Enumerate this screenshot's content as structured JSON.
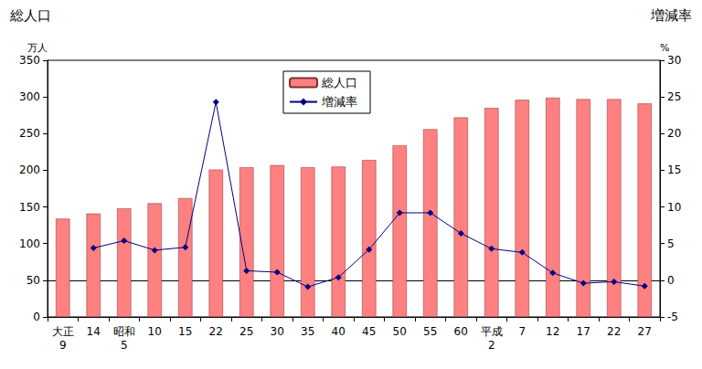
{
  "chart_data": {
    "type": "bar",
    "ylabel": "総人口",
    "yunit": "万人",
    "y2label": "増減率",
    "y2unit": "%",
    "categories": [
      "大正\n9",
      "14",
      "昭和\n5",
      "10",
      "15",
      "22",
      "25",
      "30",
      "35",
      "40",
      "45",
      "50",
      "55",
      "60",
      "平成\n2",
      "7",
      "12",
      "17",
      "22",
      "27"
    ],
    "series": [
      {
        "name": "総人口",
        "type": "bar",
        "color": "#ff8080",
        "values": [
          134,
          141,
          148,
          155,
          162,
          201,
          204,
          207,
          204,
          205,
          214,
          234,
          256,
          272,
          285,
          296,
          299,
          297,
          297,
          291
        ]
      },
      {
        "name": "増減率",
        "type": "line",
        "axis": "y2",
        "color": "#000080",
        "marker": "diamond",
        "values": [
          null,
          4.4,
          5.4,
          4.1,
          4.5,
          24.3,
          1.3,
          1.1,
          -0.9,
          0.4,
          4.2,
          9.2,
          9.2,
          6.4,
          4.3,
          3.8,
          1.0,
          -0.4,
          -0.2,
          -0.8
        ]
      }
    ],
    "ylim": [
      0,
      350
    ],
    "yticks": [
      0,
      50,
      100,
      150,
      200,
      250,
      300,
      350
    ],
    "y2lim": [
      -5,
      30
    ],
    "y2ticks": [
      -5,
      0,
      5,
      10,
      15,
      20,
      25,
      30
    ],
    "grid": false,
    "legend": "top"
  }
}
